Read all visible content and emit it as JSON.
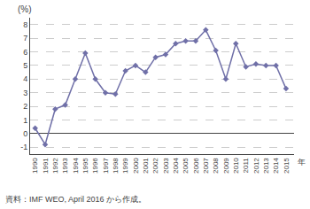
{
  "chart_data": {
    "type": "line",
    "x": [
      1990,
      1991,
      1992,
      1993,
      1994,
      1995,
      1996,
      1997,
      1998,
      1999,
      2000,
      2001,
      2002,
      2003,
      2004,
      2005,
      2006,
      2007,
      2008,
      2009,
      2010,
      2011,
      2012,
      2013,
      2014,
      2015
    ],
    "values": [
      0.4,
      -0.8,
      1.8,
      2.1,
      4.0,
      5.9,
      4.0,
      3.0,
      2.9,
      4.6,
      5.0,
      4.5,
      5.6,
      5.8,
      6.6,
      6.8,
      6.8,
      7.6,
      6.1,
      4.0,
      6.6,
      4.9,
      5.1,
      5.0,
      5.0,
      3.3
    ],
    "color": "#7070a8",
    "marker": "diamond",
    "line_style": "solid",
    "xlim": [
      1989.5,
      2015.8
    ],
    "xticks": [
      1990,
      1991,
      1992,
      1993,
      1994,
      1995,
      1996,
      1997,
      1998,
      1999,
      2000,
      2001,
      2002,
      2003,
      2004,
      2005,
      2006,
      2007,
      2008,
      2009,
      2010,
      2011,
      2012,
      2013,
      2014,
      2015
    ],
    "ylim": [
      -1.5,
      8.5
    ],
    "yticks": [
      -1,
      0,
      1,
      2,
      3,
      4,
      5,
      6,
      7,
      8
    ],
    "grid": true,
    "ylabel": "(%)",
    "xlabel": "年",
    "caption": "資料：IMF WEO, April 2016 から作成。"
  }
}
